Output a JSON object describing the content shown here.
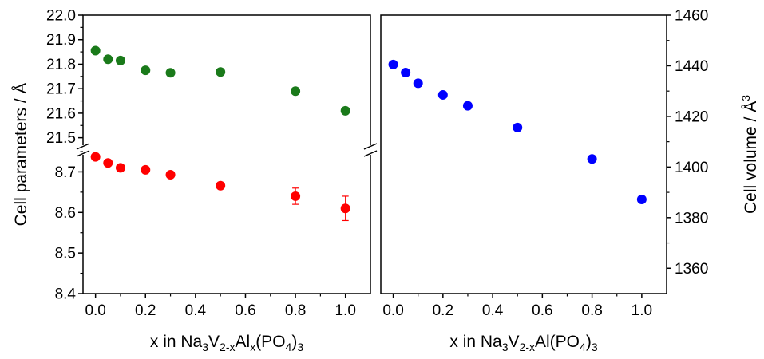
{
  "chart_data": [
    {
      "type": "scatter",
      "panel": "left",
      "ylabel": "Cell parameters  / Å",
      "xlabel_parts": [
        {
          "t": "x in Na",
          "s": "n"
        },
        {
          "t": "3",
          "s": "sub"
        },
        {
          "t": "V",
          "s": "n"
        },
        {
          "t": "2-x",
          "s": "sub"
        },
        {
          "t": "Al",
          "s": "n"
        },
        {
          "t": "x",
          "s": "sub"
        },
        {
          "t": "(PO",
          "s": "n"
        },
        {
          "t": "4",
          "s": "sub"
        },
        {
          "t": ")",
          "s": "n"
        },
        {
          "t": "3",
          "s": "sub"
        }
      ],
      "xlim": [
        -0.05,
        1.1
      ],
      "xticks": [
        "0.0",
        "0.2",
        "0.4",
        "0.6",
        "0.8",
        "1.0"
      ],
      "y_broken": true,
      "upper_segment": {
        "ylim": [
          21.45,
          22.0
        ],
        "yticks": [
          "21.5",
          "21.6",
          "21.7",
          "21.8",
          "21.9",
          "22.0"
        ]
      },
      "lower_segment": {
        "ylim": [
          8.4,
          8.75
        ],
        "yticks": [
          "8.4",
          "8.5",
          "8.6",
          "8.7"
        ]
      },
      "series": [
        {
          "color": "#1a7a1a",
          "segment": "upper",
          "x": [
            0.0,
            0.05,
            0.1,
            0.2,
            0.3,
            0.5,
            0.8,
            1.0
          ],
          "y": [
            21.855,
            21.82,
            21.815,
            21.775,
            21.765,
            21.768,
            21.69,
            21.61
          ]
        },
        {
          "color": "#ff0000",
          "segment": "lower",
          "x": [
            0.0,
            0.05,
            0.1,
            0.2,
            0.3,
            0.5,
            0.8,
            1.0
          ],
          "y": [
            8.737,
            8.722,
            8.71,
            8.705,
            8.693,
            8.666,
            8.64,
            8.61
          ],
          "yerr": [
            0,
            0,
            0,
            0,
            0,
            0,
            0.02,
            0.03
          ]
        }
      ]
    },
    {
      "type": "scatter",
      "panel": "right",
      "ylabel_parts": [
        {
          "t": "Cell volume  / Å",
          "s": "n"
        },
        {
          "t": "3",
          "s": "sup"
        }
      ],
      "xlabel_parts": [
        {
          "t": "x in Na",
          "s": "n"
        },
        {
          "t": "3",
          "s": "sub"
        },
        {
          "t": "V",
          "s": "n"
        },
        {
          "t": "2-x",
          "s": "sub"
        },
        {
          "t": "Al(PO",
          "s": "n"
        },
        {
          "t": "4",
          "s": "sub"
        },
        {
          "t": ")",
          "s": "n"
        },
        {
          "t": "3",
          "s": "sub"
        }
      ],
      "xlim": [
        -0.05,
        1.1
      ],
      "xticks": [
        "0.0",
        "0.2",
        "0.4",
        "0.6",
        "0.8",
        "1.0"
      ],
      "ylim": [
        1350,
        1460
      ],
      "yticks": [
        "1360",
        "1380",
        "1400",
        "1420",
        "1440",
        "1460"
      ],
      "y_axis_side": "right",
      "series": [
        {
          "color": "#0000ff",
          "x": [
            0.0,
            0.05,
            0.1,
            0.2,
            0.3,
            0.5,
            0.8,
            1.0
          ],
          "y": [
            1440.5,
            1437.3,
            1433.1,
            1428.5,
            1424.2,
            1415.6,
            1403.2,
            1387.2
          ]
        }
      ]
    }
  ]
}
